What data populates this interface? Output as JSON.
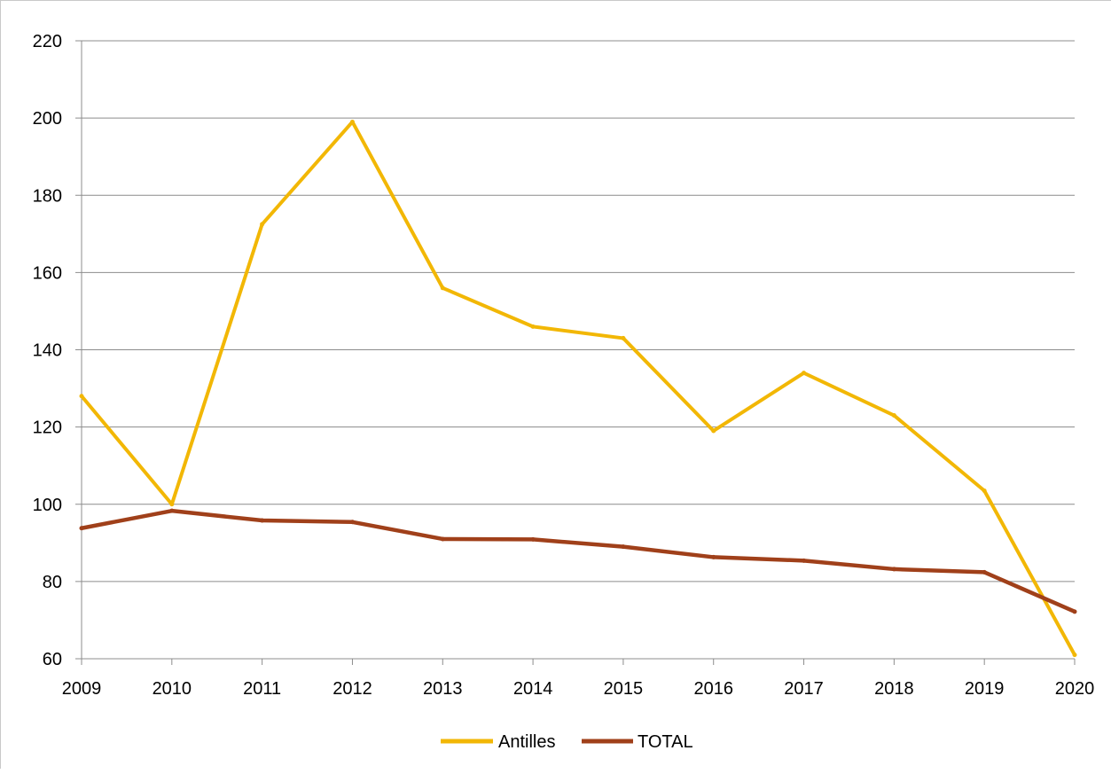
{
  "chart_data": {
    "type": "line",
    "title": "",
    "xlabel": "",
    "ylabel": "",
    "categories": [
      "2009",
      "2010",
      "2011",
      "2012",
      "2013",
      "2014",
      "2015",
      "2016",
      "2017",
      "2018",
      "2019",
      "2020"
    ],
    "ylim": [
      60,
      220
    ],
    "yticks": [
      "60",
      "80",
      "100",
      "120",
      "140",
      "160",
      "180",
      "200",
      "220"
    ],
    "grid": true,
    "legend_position": "bottom-center",
    "series": [
      {
        "name": "Antilles",
        "color": "#F2B705",
        "values": [
          128,
          100,
          172.5,
          199,
          156,
          146,
          143,
          119,
          134,
          123,
          103.5,
          61
        ]
      },
      {
        "name": "TOTAL",
        "color": "#A0401A",
        "values": [
          93.8,
          98.3,
          95.8,
          95.4,
          91,
          90.9,
          89,
          86.3,
          85.4,
          83.2,
          82.4,
          72.2
        ]
      }
    ]
  }
}
